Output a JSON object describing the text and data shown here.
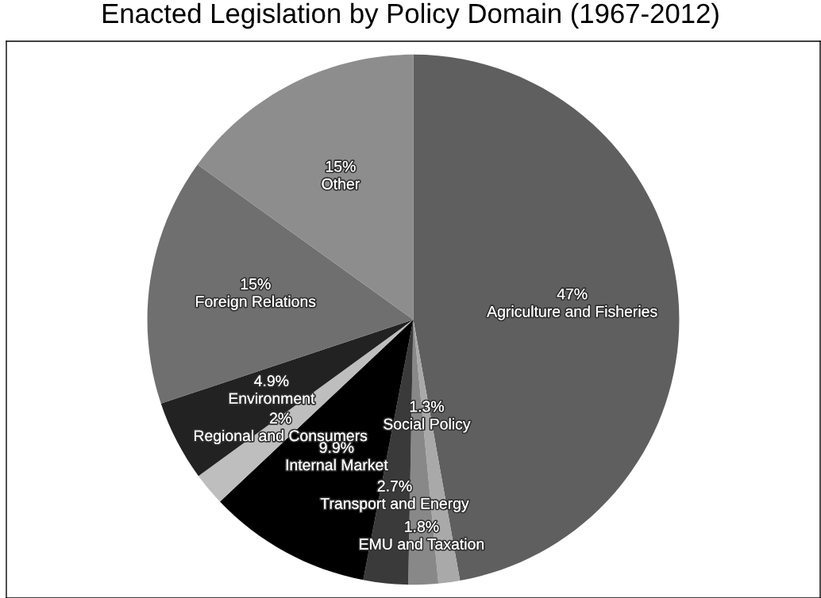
{
  "chart_data": {
    "type": "pie",
    "title": "Enacted Legislation by Policy Domain (1967-2012)",
    "categories": [
      "Agriculture and Fisheries",
      "Social Policy",
      "EMU and Taxation",
      "Transport and Energy",
      "Internal Market",
      "Regional and Consumers",
      "Environment",
      "Foreign Relations",
      "Other"
    ],
    "values": [
      47,
      1.3,
      1.8,
      2.7,
      9.9,
      2,
      4.9,
      15,
      15
    ],
    "value_labels": [
      "47%",
      "1.3%",
      "1.8%",
      "2.7%",
      "9.9%",
      "2%",
      "4.9%",
      "15%",
      "15%"
    ],
    "colors": [
      "#5f5f5f",
      "#a9a9a9",
      "#888888",
      "#3a3a3a",
      "#000000",
      "#bebebe",
      "#222222",
      "#6f6f6f",
      "#8d8d8d"
    ]
  }
}
